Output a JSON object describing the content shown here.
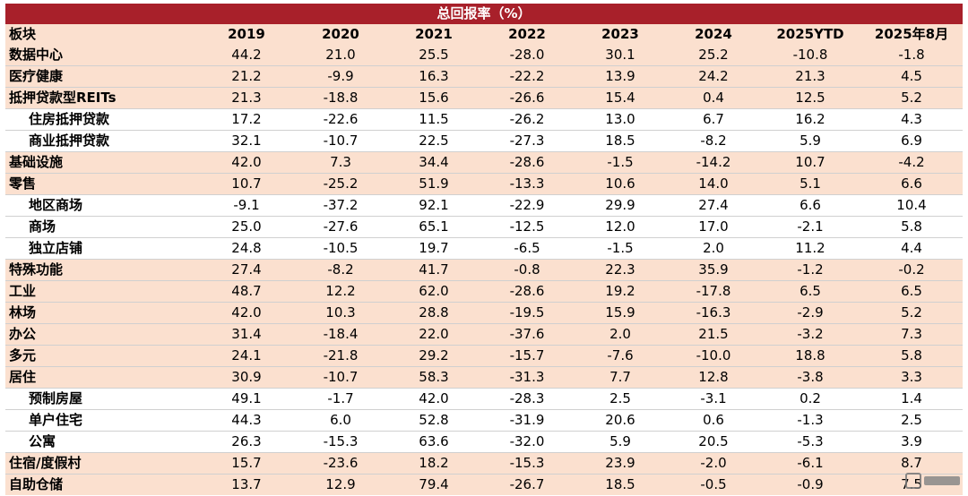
{
  "chart_data": {
    "type": "table",
    "title": "总回报率（%）",
    "columns": [
      "板块",
      "2019",
      "2020",
      "2021",
      "2022",
      "2023",
      "2024",
      "2025YTD",
      "2025年8月"
    ],
    "rows": [
      {
        "name": "数据中心",
        "indent": false,
        "values": [
          "44.2",
          "21.0",
          "25.5",
          "-28.0",
          "30.1",
          "25.2",
          "-10.8",
          "-1.8"
        ]
      },
      {
        "name": "医疗健康",
        "indent": false,
        "values": [
          "21.2",
          "-9.9",
          "16.3",
          "-22.2",
          "13.9",
          "24.2",
          "21.3",
          "4.5"
        ]
      },
      {
        "name": "抵押贷款型REITs",
        "indent": false,
        "values": [
          "21.3",
          "-18.8",
          "15.6",
          "-26.6",
          "15.4",
          "0.4",
          "12.5",
          "5.2"
        ]
      },
      {
        "name": "住房抵押贷款",
        "indent": true,
        "values": [
          "17.2",
          "-22.6",
          "11.5",
          "-26.2",
          "13.0",
          "6.7",
          "16.2",
          "4.3"
        ]
      },
      {
        "name": "商业抵押贷款",
        "indent": true,
        "values": [
          "32.1",
          "-10.7",
          "22.5",
          "-27.3",
          "18.5",
          "-8.2",
          "5.9",
          "6.9"
        ]
      },
      {
        "name": "基础设施",
        "indent": false,
        "values": [
          "42.0",
          "7.3",
          "34.4",
          "-28.6",
          "-1.5",
          "-14.2",
          "10.7",
          "-4.2"
        ]
      },
      {
        "name": "零售",
        "indent": false,
        "values": [
          "10.7",
          "-25.2",
          "51.9",
          "-13.3",
          "10.6",
          "14.0",
          "5.1",
          "6.6"
        ]
      },
      {
        "name": "地区商场",
        "indent": true,
        "values": [
          "-9.1",
          "-37.2",
          "92.1",
          "-22.9",
          "29.9",
          "27.4",
          "6.6",
          "10.4"
        ]
      },
      {
        "name": "商场",
        "indent": true,
        "values": [
          "25.0",
          "-27.6",
          "65.1",
          "-12.5",
          "12.0",
          "17.0",
          "-2.1",
          "5.8"
        ]
      },
      {
        "name": "独立店铺",
        "indent": true,
        "values": [
          "24.8",
          "-10.5",
          "19.7",
          "-6.5",
          "-1.5",
          "2.0",
          "11.2",
          "4.4"
        ]
      },
      {
        "name": "特殊功能",
        "indent": false,
        "values": [
          "27.4",
          "-8.2",
          "41.7",
          "-0.8",
          "22.3",
          "35.9",
          "-1.2",
          "-0.2"
        ]
      },
      {
        "name": "工业",
        "indent": false,
        "values": [
          "48.7",
          "12.2",
          "62.0",
          "-28.6",
          "19.2",
          "-17.8",
          "6.5",
          "6.5"
        ]
      },
      {
        "name": "林场",
        "indent": false,
        "values": [
          "42.0",
          "10.3",
          "28.8",
          "-19.5",
          "15.9",
          "-16.3",
          "-2.9",
          "5.2"
        ]
      },
      {
        "name": "办公",
        "indent": false,
        "values": [
          "31.4",
          "-18.4",
          "22.0",
          "-37.6",
          "2.0",
          "21.5",
          "-3.2",
          "7.3"
        ]
      },
      {
        "name": "多元",
        "indent": false,
        "values": [
          "24.1",
          "-21.8",
          "29.2",
          "-15.7",
          "-7.6",
          "-10.0",
          "18.8",
          "5.8"
        ]
      },
      {
        "name": "居住",
        "indent": false,
        "values": [
          "30.9",
          "-10.7",
          "58.3",
          "-31.3",
          "7.7",
          "12.8",
          "-3.8",
          "3.3"
        ]
      },
      {
        "name": "预制房屋",
        "indent": true,
        "values": [
          "49.1",
          "-1.7",
          "42.0",
          "-28.3",
          "2.5",
          "-3.1",
          "0.2",
          "1.4"
        ]
      },
      {
        "name": "单户住宅",
        "indent": true,
        "values": [
          "44.3",
          "6.0",
          "52.8",
          "-31.9",
          "20.6",
          "0.6",
          "-1.3",
          "2.5"
        ]
      },
      {
        "name": "公寓",
        "indent": true,
        "values": [
          "26.3",
          "-15.3",
          "63.6",
          "-32.0",
          "5.9",
          "20.5",
          "-5.3",
          "3.9"
        ]
      },
      {
        "name": "住宿/度假村",
        "indent": false,
        "values": [
          "15.7",
          "-23.6",
          "18.2",
          "-15.3",
          "23.9",
          "-2.0",
          "-6.1",
          "8.7"
        ]
      },
      {
        "name": "自助仓储",
        "indent": false,
        "values": [
          "13.7",
          "12.9",
          "79.4",
          "-26.7",
          "18.5",
          "-0.5",
          "-0.9",
          "7.5"
        ]
      }
    ]
  },
  "watermark": {
    "text": "格隆汇"
  }
}
